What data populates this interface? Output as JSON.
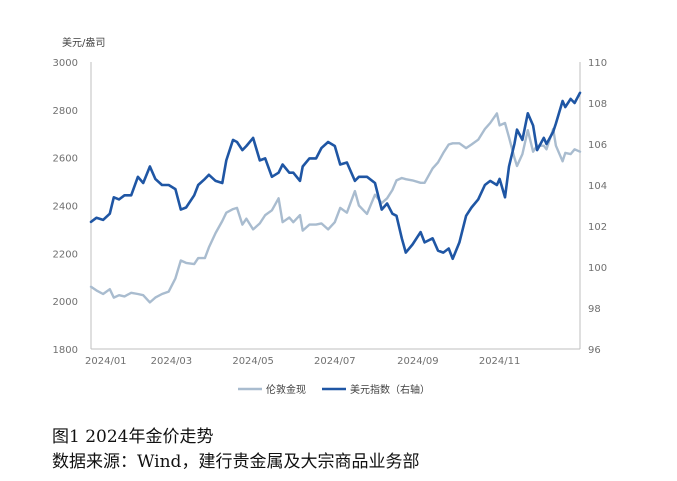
{
  "chart_data": {
    "type": "line",
    "left_axis_unit": "美元/盎司",
    "x_tick_labels": [
      "2024/01",
      "2024/03",
      "2024/05",
      "2024/07",
      "2024/09",
      "2024/11"
    ],
    "x_range": [
      "2024-01-01",
      "2024-12-31"
    ],
    "y_left": {
      "min": 1800,
      "max": 3000,
      "ticks": [
        "1800",
        "2000",
        "2200",
        "2400",
        "2600",
        "2800",
        "3000"
      ]
    },
    "y_right": {
      "min": 96,
      "max": 110,
      "ticks": [
        "96",
        "98",
        "100",
        "102",
        "104",
        "106",
        "108",
        "110"
      ]
    },
    "grid": false,
    "legend_position": "bottom",
    "series": [
      {
        "name": "伦敦金现",
        "axis": "left",
        "color": "#A9BCCF",
        "points": [
          [
            "2024-01-01",
            2060
          ],
          [
            "2024-01-05",
            2045
          ],
          [
            "2024-01-10",
            2030
          ],
          [
            "2024-01-15",
            2050
          ],
          [
            "2024-01-18",
            2015
          ],
          [
            "2024-01-22",
            2025
          ],
          [
            "2024-01-26",
            2020
          ],
          [
            "2024-01-31",
            2035
          ],
          [
            "2024-02-05",
            2030
          ],
          [
            "2024-02-09",
            2025
          ],
          [
            "2024-02-14",
            1995
          ],
          [
            "2024-02-18",
            2015
          ],
          [
            "2024-02-23",
            2030
          ],
          [
            "2024-02-28",
            2040
          ],
          [
            "2024-03-04",
            2095
          ],
          [
            "2024-03-08",
            2170
          ],
          [
            "2024-03-12",
            2160
          ],
          [
            "2024-03-18",
            2155
          ],
          [
            "2024-03-21",
            2180
          ],
          [
            "2024-03-26",
            2180
          ],
          [
            "2024-03-29",
            2225
          ],
          [
            "2024-04-03",
            2285
          ],
          [
            "2024-04-08",
            2335
          ],
          [
            "2024-04-11",
            2370
          ],
          [
            "2024-04-16",
            2385
          ],
          [
            "2024-04-19",
            2390
          ],
          [
            "2024-04-23",
            2320
          ],
          [
            "2024-04-26",
            2345
          ],
          [
            "2024-05-01",
            2300
          ],
          [
            "2024-05-06",
            2325
          ],
          [
            "2024-05-10",
            2360
          ],
          [
            "2024-05-15",
            2380
          ],
          [
            "2024-05-20",
            2430
          ],
          [
            "2024-05-23",
            2330
          ],
          [
            "2024-05-28",
            2350
          ],
          [
            "2024-05-31",
            2330
          ],
          [
            "2024-06-05",
            2360
          ],
          [
            "2024-06-07",
            2295
          ],
          [
            "2024-06-12",
            2320
          ],
          [
            "2024-06-17",
            2320
          ],
          [
            "2024-06-21",
            2325
          ],
          [
            "2024-06-26",
            2300
          ],
          [
            "2024-07-01",
            2330
          ],
          [
            "2024-07-05",
            2390
          ],
          [
            "2024-07-10",
            2370
          ],
          [
            "2024-07-16",
            2460
          ],
          [
            "2024-07-19",
            2400
          ],
          [
            "2024-07-25",
            2365
          ],
          [
            "2024-07-31",
            2445
          ],
          [
            "2024-08-05",
            2410
          ],
          [
            "2024-08-09",
            2430
          ],
          [
            "2024-08-13",
            2465
          ],
          [
            "2024-08-16",
            2505
          ],
          [
            "2024-08-20",
            2515
          ],
          [
            "2024-08-23",
            2510
          ],
          [
            "2024-08-28",
            2505
          ],
          [
            "2024-09-03",
            2495
          ],
          [
            "2024-09-06",
            2495
          ],
          [
            "2024-09-12",
            2555
          ],
          [
            "2024-09-16",
            2580
          ],
          [
            "2024-09-20",
            2620
          ],
          [
            "2024-09-24",
            2655
          ],
          [
            "2024-09-27",
            2660
          ],
          [
            "2024-10-02",
            2660
          ],
          [
            "2024-10-07",
            2640
          ],
          [
            "2024-10-11",
            2655
          ],
          [
            "2024-10-16",
            2675
          ],
          [
            "2024-10-21",
            2720
          ],
          [
            "2024-10-25",
            2745
          ],
          [
            "2024-10-30",
            2785
          ],
          [
            "2024-11-01",
            2735
          ],
          [
            "2024-11-05",
            2745
          ],
          [
            "2024-11-08",
            2685
          ],
          [
            "2024-11-12",
            2600
          ],
          [
            "2024-11-14",
            2565
          ],
          [
            "2024-11-18",
            2615
          ],
          [
            "2024-11-22",
            2715
          ],
          [
            "2024-11-26",
            2625
          ],
          [
            "2024-11-29",
            2650
          ],
          [
            "2024-12-04",
            2650
          ],
          [
            "2024-12-06",
            2635
          ],
          [
            "2024-12-11",
            2720
          ],
          [
            "2024-12-13",
            2650
          ],
          [
            "2024-12-18",
            2585
          ],
          [
            "2024-12-20",
            2620
          ],
          [
            "2024-12-24",
            2615
          ],
          [
            "2024-12-27",
            2635
          ],
          [
            "2024-12-31",
            2625
          ]
        ]
      },
      {
        "name": "美元指数（右轴）",
        "axis": "right",
        "color": "#1F56A4",
        "points": [
          [
            "2024-01-01",
            102.2
          ],
          [
            "2024-01-05",
            102.4
          ],
          [
            "2024-01-10",
            102.3
          ],
          [
            "2024-01-15",
            102.6
          ],
          [
            "2024-01-18",
            103.4
          ],
          [
            "2024-01-22",
            103.3
          ],
          [
            "2024-01-26",
            103.5
          ],
          [
            "2024-01-31",
            103.5
          ],
          [
            "2024-02-05",
            104.4
          ],
          [
            "2024-02-09",
            104.1
          ],
          [
            "2024-02-14",
            104.9
          ],
          [
            "2024-02-18",
            104.3
          ],
          [
            "2024-02-23",
            104.0
          ],
          [
            "2024-02-28",
            104.0
          ],
          [
            "2024-03-04",
            103.8
          ],
          [
            "2024-03-08",
            102.8
          ],
          [
            "2024-03-12",
            102.9
          ],
          [
            "2024-03-18",
            103.5
          ],
          [
            "2024-03-21",
            104.0
          ],
          [
            "2024-03-26",
            104.3
          ],
          [
            "2024-03-29",
            104.5
          ],
          [
            "2024-04-03",
            104.2
          ],
          [
            "2024-04-08",
            104.1
          ],
          [
            "2024-04-11",
            105.2
          ],
          [
            "2024-04-16",
            106.2
          ],
          [
            "2024-04-19",
            106.1
          ],
          [
            "2024-04-23",
            105.7
          ],
          [
            "2024-04-26",
            105.9
          ],
          [
            "2024-05-01",
            106.3
          ],
          [
            "2024-05-06",
            105.2
          ],
          [
            "2024-05-10",
            105.3
          ],
          [
            "2024-05-15",
            104.4
          ],
          [
            "2024-05-20",
            104.6
          ],
          [
            "2024-05-23",
            105.0
          ],
          [
            "2024-05-28",
            104.6
          ],
          [
            "2024-05-31",
            104.6
          ],
          [
            "2024-06-05",
            104.2
          ],
          [
            "2024-06-07",
            104.9
          ],
          [
            "2024-06-12",
            105.3
          ],
          [
            "2024-06-17",
            105.3
          ],
          [
            "2024-06-21",
            105.8
          ],
          [
            "2024-06-26",
            106.1
          ],
          [
            "2024-07-01",
            105.9
          ],
          [
            "2024-07-05",
            105.0
          ],
          [
            "2024-07-10",
            105.1
          ],
          [
            "2024-07-16",
            104.2
          ],
          [
            "2024-07-19",
            104.4
          ],
          [
            "2024-07-25",
            104.4
          ],
          [
            "2024-07-31",
            104.1
          ],
          [
            "2024-08-05",
            102.8
          ],
          [
            "2024-08-09",
            103.1
          ],
          [
            "2024-08-13",
            102.6
          ],
          [
            "2024-08-16",
            102.5
          ],
          [
            "2024-08-20",
            101.4
          ],
          [
            "2024-08-23",
            100.7
          ],
          [
            "2024-08-28",
            101.1
          ],
          [
            "2024-09-03",
            101.7
          ],
          [
            "2024-09-06",
            101.2
          ],
          [
            "2024-09-12",
            101.4
          ],
          [
            "2024-09-16",
            100.8
          ],
          [
            "2024-09-20",
            100.7
          ],
          [
            "2024-09-24",
            100.9
          ],
          [
            "2024-09-27",
            100.4
          ],
          [
            "2024-10-02",
            101.2
          ],
          [
            "2024-10-07",
            102.5
          ],
          [
            "2024-10-11",
            102.9
          ],
          [
            "2024-10-16",
            103.3
          ],
          [
            "2024-10-21",
            104.0
          ],
          [
            "2024-10-25",
            104.2
          ],
          [
            "2024-10-30",
            104.0
          ],
          [
            "2024-11-01",
            104.3
          ],
          [
            "2024-11-05",
            103.4
          ],
          [
            "2024-11-08",
            104.9
          ],
          [
            "2024-11-12",
            106.0
          ],
          [
            "2024-11-14",
            106.7
          ],
          [
            "2024-11-18",
            106.2
          ],
          [
            "2024-11-22",
            107.5
          ],
          [
            "2024-11-26",
            106.9
          ],
          [
            "2024-11-29",
            105.7
          ],
          [
            "2024-12-04",
            106.3
          ],
          [
            "2024-12-06",
            106.0
          ],
          [
            "2024-12-11",
            106.6
          ],
          [
            "2024-12-13",
            107.0
          ],
          [
            "2024-12-18",
            108.1
          ],
          [
            "2024-12-20",
            107.8
          ],
          [
            "2024-12-24",
            108.2
          ],
          [
            "2024-12-27",
            108.0
          ],
          [
            "2024-12-31",
            108.5
          ]
        ]
      }
    ],
    "legend": [
      {
        "label": "伦敦金现",
        "color": "#A9BCCF"
      },
      {
        "label": "美元指数（右轴）",
        "color": "#1F56A4"
      }
    ]
  },
  "caption": {
    "title": "图1  2024年金价走势",
    "source": "数据来源：Wind，建行贵金属及大宗商品业务部"
  }
}
